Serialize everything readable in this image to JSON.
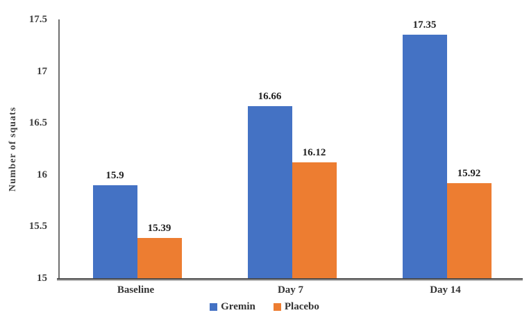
{
  "chart_data": {
    "type": "bar",
    "title": "",
    "xlabel": "",
    "ylabel": "Number of squats",
    "categories": [
      "Baseline",
      "Day 7",
      "Day 14"
    ],
    "series": [
      {
        "name": "Gremin",
        "color": "#4472C4",
        "values": [
          15.9,
          16.66,
          17.35
        ],
        "value_labels": [
          "15.9",
          "16.66",
          "17.35"
        ]
      },
      {
        "name": "Placebo",
        "color": "#ED7D31",
        "values": [
          15.39,
          16.12,
          15.92
        ],
        "value_labels": [
          "15.39",
          "16.12",
          "15.92"
        ]
      }
    ],
    "ylim": [
      15,
      17.5
    ],
    "yticks": [
      15,
      15.5,
      16,
      16.5,
      17,
      17.5
    ],
    "ytick_labels": [
      "15",
      "15.5",
      "16",
      "16.5",
      "17",
      "17.5"
    ],
    "grid": false,
    "legend_position": "bottom",
    "data_labels_shown": true
  },
  "colors": {
    "background": "#ffffff",
    "axis_line": "#4a4a4a",
    "tick_text": "#3f3f3f",
    "data_label_text": "#1f1f1f"
  }
}
